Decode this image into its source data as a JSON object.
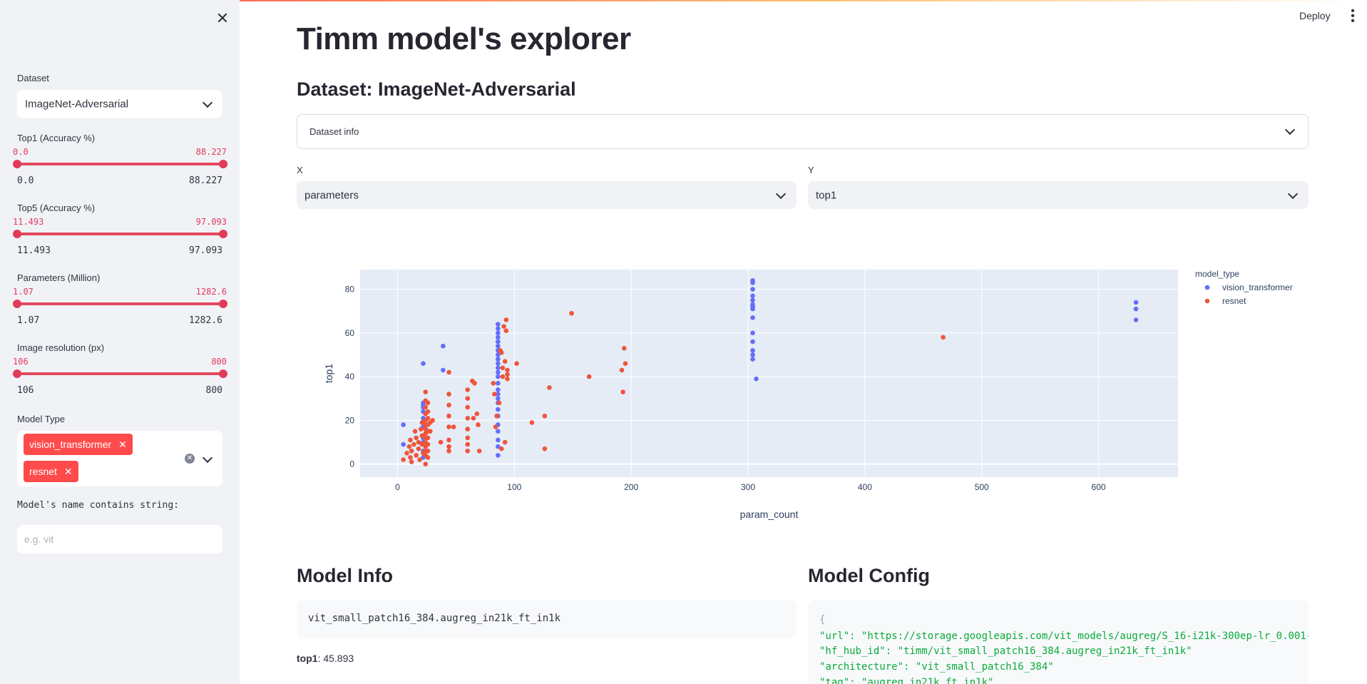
{
  "app": {
    "deploy_label": "Deploy",
    "menu_icon": "vertical-dots-icon"
  },
  "sidebar": {
    "close_icon": "close-icon",
    "dataset": {
      "label": "Dataset",
      "value": "ImageNet-Adversarial"
    },
    "sliders": [
      {
        "label": "Top1 (Accuracy %)",
        "low": "0.0",
        "high": "88.227",
        "min": "0.0",
        "max": "88.227",
        "low_frac": 0.0,
        "high_frac": 1.0
      },
      {
        "label": "Top5 (Accuracy %)",
        "low": "11.493",
        "high": "97.093",
        "min": "11.493",
        "max": "97.093",
        "low_frac": 0.0,
        "high_frac": 1.0
      },
      {
        "label": "Parameters (Million)",
        "low": "1.07",
        "high": "1282.6",
        "min": "1.07",
        "max": "1282.6",
        "low_frac": 0.0,
        "high_frac": 1.0
      },
      {
        "label": "Image resolution (px)",
        "low": "106",
        "high": "800",
        "min": "106",
        "max": "800",
        "low_frac": 0.0,
        "high_frac": 1.0
      }
    ],
    "model_type": {
      "label": "Model Type",
      "tags": [
        "vision_transformer",
        "resnet"
      ]
    },
    "name_filter": {
      "label": "Model's name contains string:",
      "placeholder": "e.g. vit",
      "value": ""
    }
  },
  "main": {
    "title": "Timm model's explorer",
    "subtitle": "Dataset: ImageNet-Adversarial",
    "expander_label": "Dataset info",
    "x_select": {
      "label": "X",
      "value": "parameters"
    },
    "y_select": {
      "label": "Y",
      "value": "top1"
    },
    "model_info": {
      "heading": "Model Info",
      "name": "vit_small_patch16_384.augreg_in21k_ft_in1k",
      "top1_label": "top1",
      "top1_value": ": 45.893"
    },
    "model_config": {
      "heading": "Model Config",
      "lines": [
        "{",
        "\"url\": \"https://storage.googleapis.com/vit_models/augreg/S_16-i21k-300ep-lr_0.001-",
        "\"hf_hub_id\": \"timm/vit_small_patch16_384.augreg_in21k_ft_in1k\"",
        "\"architecture\": \"vit_small_patch16_384\"",
        "\"tag\": \"augreg_in21k_ft_in1k\""
      ]
    }
  },
  "chart_data": {
    "type": "scatter",
    "title": "",
    "xlabel": "param_count",
    "ylabel": "top1",
    "xlim": [
      -32,
      668
    ],
    "ylim": [
      -6,
      89
    ],
    "xticks": [
      0,
      100,
      200,
      300,
      400,
      500,
      600
    ],
    "yticks": [
      0,
      20,
      40,
      60,
      80
    ],
    "grid": true,
    "legend_title": "model_type",
    "legend_position": "top-right",
    "series": [
      {
        "name": "vision_transformer",
        "color": "#636efa",
        "points": [
          [
            5,
            18
          ],
          [
            5,
            9
          ],
          [
            22,
            46
          ],
          [
            22,
            28
          ],
          [
            22,
            27
          ],
          [
            22,
            26
          ],
          [
            22,
            24
          ],
          [
            22,
            21
          ],
          [
            22,
            17
          ],
          [
            22,
            12
          ],
          [
            22,
            10
          ],
          [
            22,
            6
          ],
          [
            22,
            3
          ],
          [
            39,
            54
          ],
          [
            39,
            43
          ],
          [
            86,
            64
          ],
          [
            86,
            62
          ],
          [
            86,
            60
          ],
          [
            86,
            58
          ],
          [
            86,
            56
          ],
          [
            86,
            54
          ],
          [
            86,
            52
          ],
          [
            86,
            50
          ],
          [
            86,
            48
          ],
          [
            86,
            46
          ],
          [
            86,
            44
          ],
          [
            86,
            42
          ],
          [
            86,
            40
          ],
          [
            86,
            37
          ],
          [
            86,
            34
          ],
          [
            86,
            32
          ],
          [
            86,
            30
          ],
          [
            86,
            28
          ],
          [
            86,
            25
          ],
          [
            86,
            22
          ],
          [
            86,
            18
          ],
          [
            86,
            15
          ],
          [
            86,
            11
          ],
          [
            86,
            8
          ],
          [
            86,
            4
          ],
          [
            304,
            84
          ],
          [
            304,
            83
          ],
          [
            304,
            80
          ],
          [
            304,
            77
          ],
          [
            304,
            75
          ],
          [
            304,
            73
          ],
          [
            304,
            72
          ],
          [
            304,
            71
          ],
          [
            304,
            67
          ],
          [
            304,
            60
          ],
          [
            304,
            56
          ],
          [
            304,
            52
          ],
          [
            304,
            50
          ],
          [
            304,
            48
          ],
          [
            307,
            39
          ],
          [
            632,
            74
          ],
          [
            632,
            71
          ],
          [
            632,
            66
          ]
        ]
      },
      {
        "name": "resnet",
        "color": "#ef553b",
        "points": [
          [
            5,
            2
          ],
          [
            8,
            5
          ],
          [
            10,
            8
          ],
          [
            11,
            11
          ],
          [
            11,
            3
          ],
          [
            12,
            1
          ],
          [
            12,
            6
          ],
          [
            14,
            9
          ],
          [
            15,
            15
          ],
          [
            16,
            12
          ],
          [
            16,
            4
          ],
          [
            18,
            10
          ],
          [
            18,
            7
          ],
          [
            19,
            2
          ],
          [
            20,
            16
          ],
          [
            21,
            19
          ],
          [
            21,
            13
          ],
          [
            21,
            9
          ],
          [
            22,
            5
          ],
          [
            24,
            33
          ],
          [
            24,
            29
          ],
          [
            24,
            26
          ],
          [
            24,
            23
          ],
          [
            24,
            20
          ],
          [
            24,
            18
          ],
          [
            24,
            16
          ],
          [
            24,
            14
          ],
          [
            24,
            12
          ],
          [
            24,
            10
          ],
          [
            24,
            8
          ],
          [
            24,
            6
          ],
          [
            24,
            4
          ],
          [
            24,
            0
          ],
          [
            26,
            28
          ],
          [
            26,
            24
          ],
          [
            26,
            21
          ],
          [
            26,
            18
          ],
          [
            26,
            15
          ],
          [
            26,
            12
          ],
          [
            26,
            9
          ],
          [
            26,
            6
          ],
          [
            26,
            3
          ],
          [
            28,
            19
          ],
          [
            28,
            15
          ],
          [
            30,
            20
          ],
          [
            44,
            42
          ],
          [
            44,
            32
          ],
          [
            44,
            27
          ],
          [
            44,
            22
          ],
          [
            44,
            17
          ],
          [
            44,
            11
          ],
          [
            44,
            8
          ],
          [
            44,
            6
          ],
          [
            37,
            10
          ],
          [
            48,
            17
          ],
          [
            60,
            34
          ],
          [
            60,
            30
          ],
          [
            60,
            26
          ],
          [
            60,
            21
          ],
          [
            60,
            16
          ],
          [
            60,
            12
          ],
          [
            60,
            9
          ],
          [
            60,
            6
          ],
          [
            64,
            38
          ],
          [
            66,
            37
          ],
          [
            65,
            21
          ],
          [
            68,
            23
          ],
          [
            69,
            18
          ],
          [
            70,
            6
          ],
          [
            82,
            37
          ],
          [
            83,
            32
          ],
          [
            84,
            17
          ],
          [
            85,
            22
          ],
          [
            87,
            28
          ],
          [
            88,
            52
          ],
          [
            89,
            51
          ],
          [
            90,
            44
          ],
          [
            90,
            40
          ],
          [
            91,
            63
          ],
          [
            92,
            47
          ],
          [
            93,
            66
          ],
          [
            93,
            61
          ],
          [
            94,
            43
          ],
          [
            94,
            41
          ],
          [
            94,
            39
          ],
          [
            92,
            10
          ],
          [
            89,
            7
          ],
          [
            102,
            46
          ],
          [
            115,
            19
          ],
          [
            126,
            22
          ],
          [
            126,
            7
          ],
          [
            130,
            35
          ],
          [
            149,
            69
          ],
          [
            164,
            40
          ],
          [
            192,
            43
          ],
          [
            193,
            33
          ],
          [
            194,
            53
          ],
          [
            195,
            46
          ],
          [
            467,
            58
          ]
        ]
      }
    ]
  }
}
